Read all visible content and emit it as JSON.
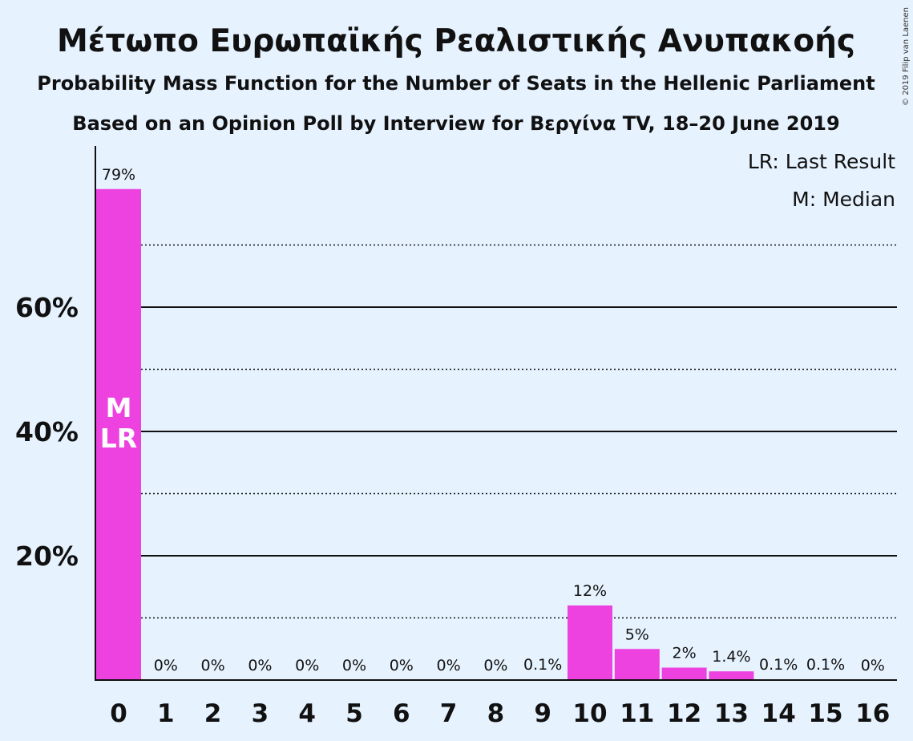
{
  "title": "Μέτωπο Ευρωπαϊκής Ρεαλιστικής Ανυπακοής",
  "subtitle1": "Probability Mass Function for the Number of Seats in the Hellenic Parliament",
  "subtitle2": "Based on an Opinion Poll by Interview for Βεργίνα TV, 18–20 June 2019",
  "copyright": "© 2019 Filip van Laenen",
  "legend": {
    "last_result": "LR: Last Result",
    "median": "M: Median"
  },
  "colors": {
    "background": "#e6f2fe",
    "bar": "#ee42e0",
    "text": "#111111"
  },
  "chart_data": {
    "type": "bar",
    "categories": [
      "0",
      "1",
      "2",
      "3",
      "4",
      "5",
      "6",
      "7",
      "8",
      "9",
      "10",
      "11",
      "12",
      "13",
      "14",
      "15",
      "16"
    ],
    "values": [
      79,
      0,
      0,
      0,
      0,
      0,
      0,
      0,
      0,
      0.1,
      12,
      5,
      2,
      1.4,
      0.1,
      0.1,
      0
    ],
    "value_labels": [
      "79%",
      "0%",
      "0%",
      "0%",
      "0%",
      "0%",
      "0%",
      "0%",
      "0%",
      "0.1%",
      "12%",
      "5%",
      "2%",
      "1.4%",
      "0.1%",
      "0.1%",
      "0%"
    ],
    "ylim": [
      0,
      85
    ],
    "yticks": [
      20,
      40,
      60
    ],
    "ytick_labels": [
      "20%",
      "40%",
      "60%"
    ],
    "solid_gridlines": [
      20,
      40,
      60
    ],
    "dotted_gridlines": [
      10,
      30,
      50,
      70
    ],
    "bar_markers": [
      {
        "category": "0",
        "lines": [
          "M",
          "LR"
        ]
      }
    ],
    "legend_position": "top-right"
  }
}
